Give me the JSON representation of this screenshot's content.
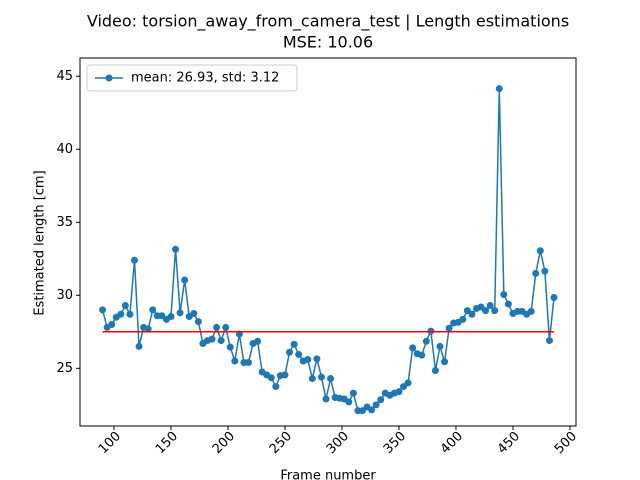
{
  "chart_data": {
    "type": "line",
    "title": "Video: torsion_away_from_camera_test | Length estimations",
    "subtitle": "MSE: 10.06",
    "x_label": "Frame number",
    "y_label": "Estimated length [cm]",
    "xlim": [
      70.2,
      505.3
    ],
    "ylim": [
      21.05,
      46.25
    ],
    "xticks": [
      100,
      150,
      200,
      250,
      300,
      350,
      400,
      450,
      500
    ],
    "yticks": [
      25,
      30,
      35,
      40,
      45
    ],
    "legend": "upper left",
    "series": [
      {
        "name": "mean: 26.93, std: 3.12",
        "color": "#1f77b4",
        "marker": "o",
        "x": [
          90,
          94,
          98,
          102,
          106,
          110,
          114,
          118,
          122,
          126,
          130,
          134,
          138,
          142,
          146,
          150,
          154,
          158,
          162,
          166,
          170,
          174,
          178,
          182,
          186,
          190,
          194,
          198,
          202,
          206,
          210,
          214,
          218,
          222,
          226,
          230,
          234,
          238,
          242,
          246,
          250,
          254,
          258,
          262,
          266,
          270,
          274,
          278,
          282,
          286,
          290,
          294,
          298,
          302,
          306,
          310,
          314,
          318,
          322,
          326,
          330,
          334,
          338,
          342,
          346,
          350,
          354,
          358,
          362,
          366,
          370,
          374,
          378,
          382,
          386,
          390,
          394,
          398,
          402,
          406,
          410,
          414,
          418,
          422,
          426,
          430,
          434,
          438,
          442,
          446,
          450,
          454,
          458,
          462,
          466,
          470,
          474,
          478,
          482,
          486
        ],
        "values": [
          29.0,
          27.8,
          28.0,
          28.5,
          28.7,
          29.3,
          28.7,
          32.4,
          26.5,
          27.8,
          27.7,
          29.0,
          28.6,
          28.6,
          28.35,
          28.55,
          33.15,
          28.8,
          31.05,
          28.55,
          28.75,
          28.2,
          26.7,
          26.9,
          27.0,
          27.8,
          26.9,
          27.8,
          26.45,
          25.5,
          27.35,
          25.4,
          25.4,
          26.7,
          26.85,
          24.75,
          24.55,
          24.35,
          23.75,
          24.5,
          24.55,
          26.1,
          26.65,
          25.95,
          25.5,
          25.6,
          24.3,
          25.65,
          24.4,
          22.9,
          24.3,
          23.0,
          22.95,
          22.9,
          22.7,
          23.3,
          22.1,
          22.1,
          22.35,
          22.15,
          22.5,
          22.85,
          23.3,
          23.15,
          23.3,
          23.4,
          23.75,
          24.0,
          26.4,
          26.0,
          25.9,
          26.85,
          27.55,
          24.85,
          26.5,
          25.45,
          27.75,
          28.1,
          28.15,
          28.35,
          28.95,
          28.7,
          29.1,
          29.2,
          28.95,
          29.3,
          28.95,
          44.15,
          30.05,
          29.4,
          28.75,
          28.9,
          28.9,
          28.7,
          28.9,
          31.5,
          33.05,
          31.65,
          26.9,
          29.85
        ]
      },
      {
        "color": "#ff0000",
        "x": [
          90,
          486
        ],
        "values": [
          27.5,
          27.5
        ]
      }
    ]
  }
}
